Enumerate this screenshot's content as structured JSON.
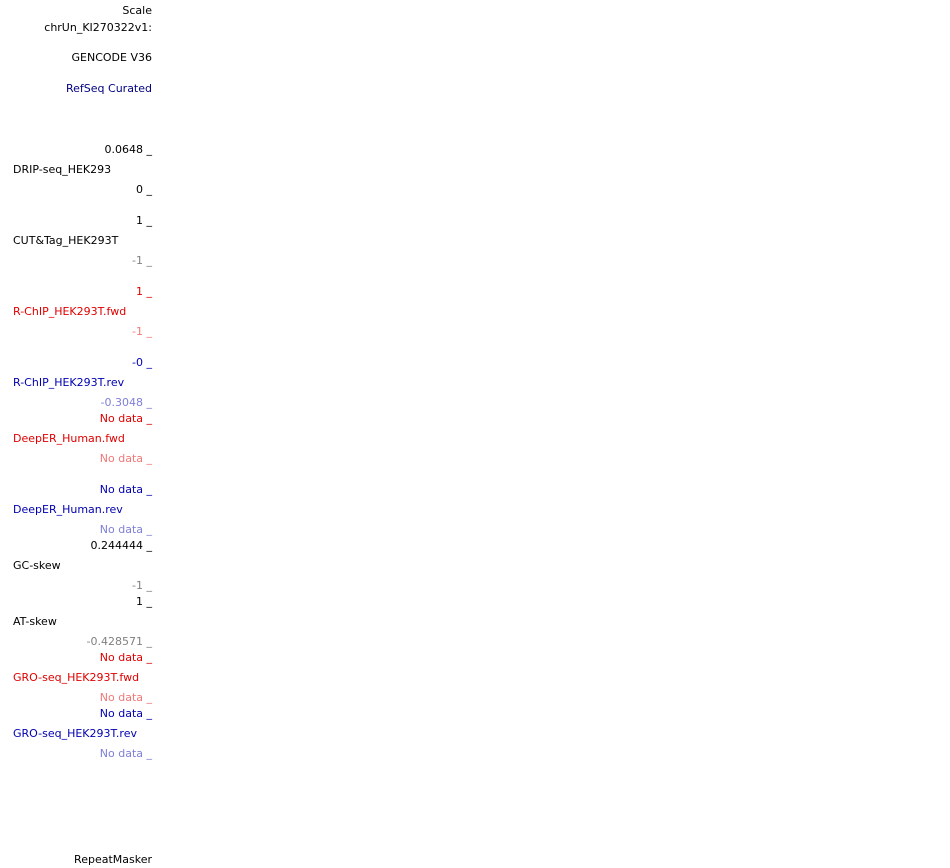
{
  "labels": {
    "scale": "Scale",
    "chrom": "chrUn_KI270322v1:",
    "gencode": "GENCODE V36",
    "refseq": "RefSeq Curated",
    "repeatmasker": "RepeatMasker"
  },
  "tracks": {
    "drip": {
      "name": "DRIP-seq_HEK293",
      "max": "0.0648 _",
      "min": "0 _"
    },
    "cuttag": {
      "name": "CUT&Tag_HEK293T",
      "max": "1 _",
      "min": "-1 _"
    },
    "rchip_fwd": {
      "name": "R-ChIP_HEK293T.fwd",
      "max": "1 _",
      "min": "-1 _"
    },
    "rchip_rev": {
      "name": "R-ChIP_HEK293T.rev",
      "max": "-0 _",
      "min": "-0.3048 _"
    },
    "deeper_fwd": {
      "name": "DeepER_Human.fwd",
      "max": "No data _",
      "min": "No data _"
    },
    "deeper_rev": {
      "name": "DeepER_Human.rev",
      "max": "No data _",
      "min": "No data _"
    },
    "gcskew": {
      "name": "GC-skew",
      "max": "0.244444 _",
      "min": "-1 _"
    },
    "atskew": {
      "name": "AT-skew",
      "max": "1 _",
      "min": "-0.428571 _"
    },
    "gro_fwd": {
      "name": "GRO-seq_HEK293T.fwd",
      "max": "No data _",
      "min": "No data _"
    },
    "gro_rev": {
      "name": "GRO-seq_HEK293T.rev",
      "max": "No data _",
      "min": "No data _"
    }
  },
  "colors": {
    "black": "#000000",
    "gray": "#808080",
    "red": "#e00000",
    "pink": "#f07878",
    "navy": "#0000b0",
    "lavender": "#7f7fd8",
    "link": "#000080"
  }
}
